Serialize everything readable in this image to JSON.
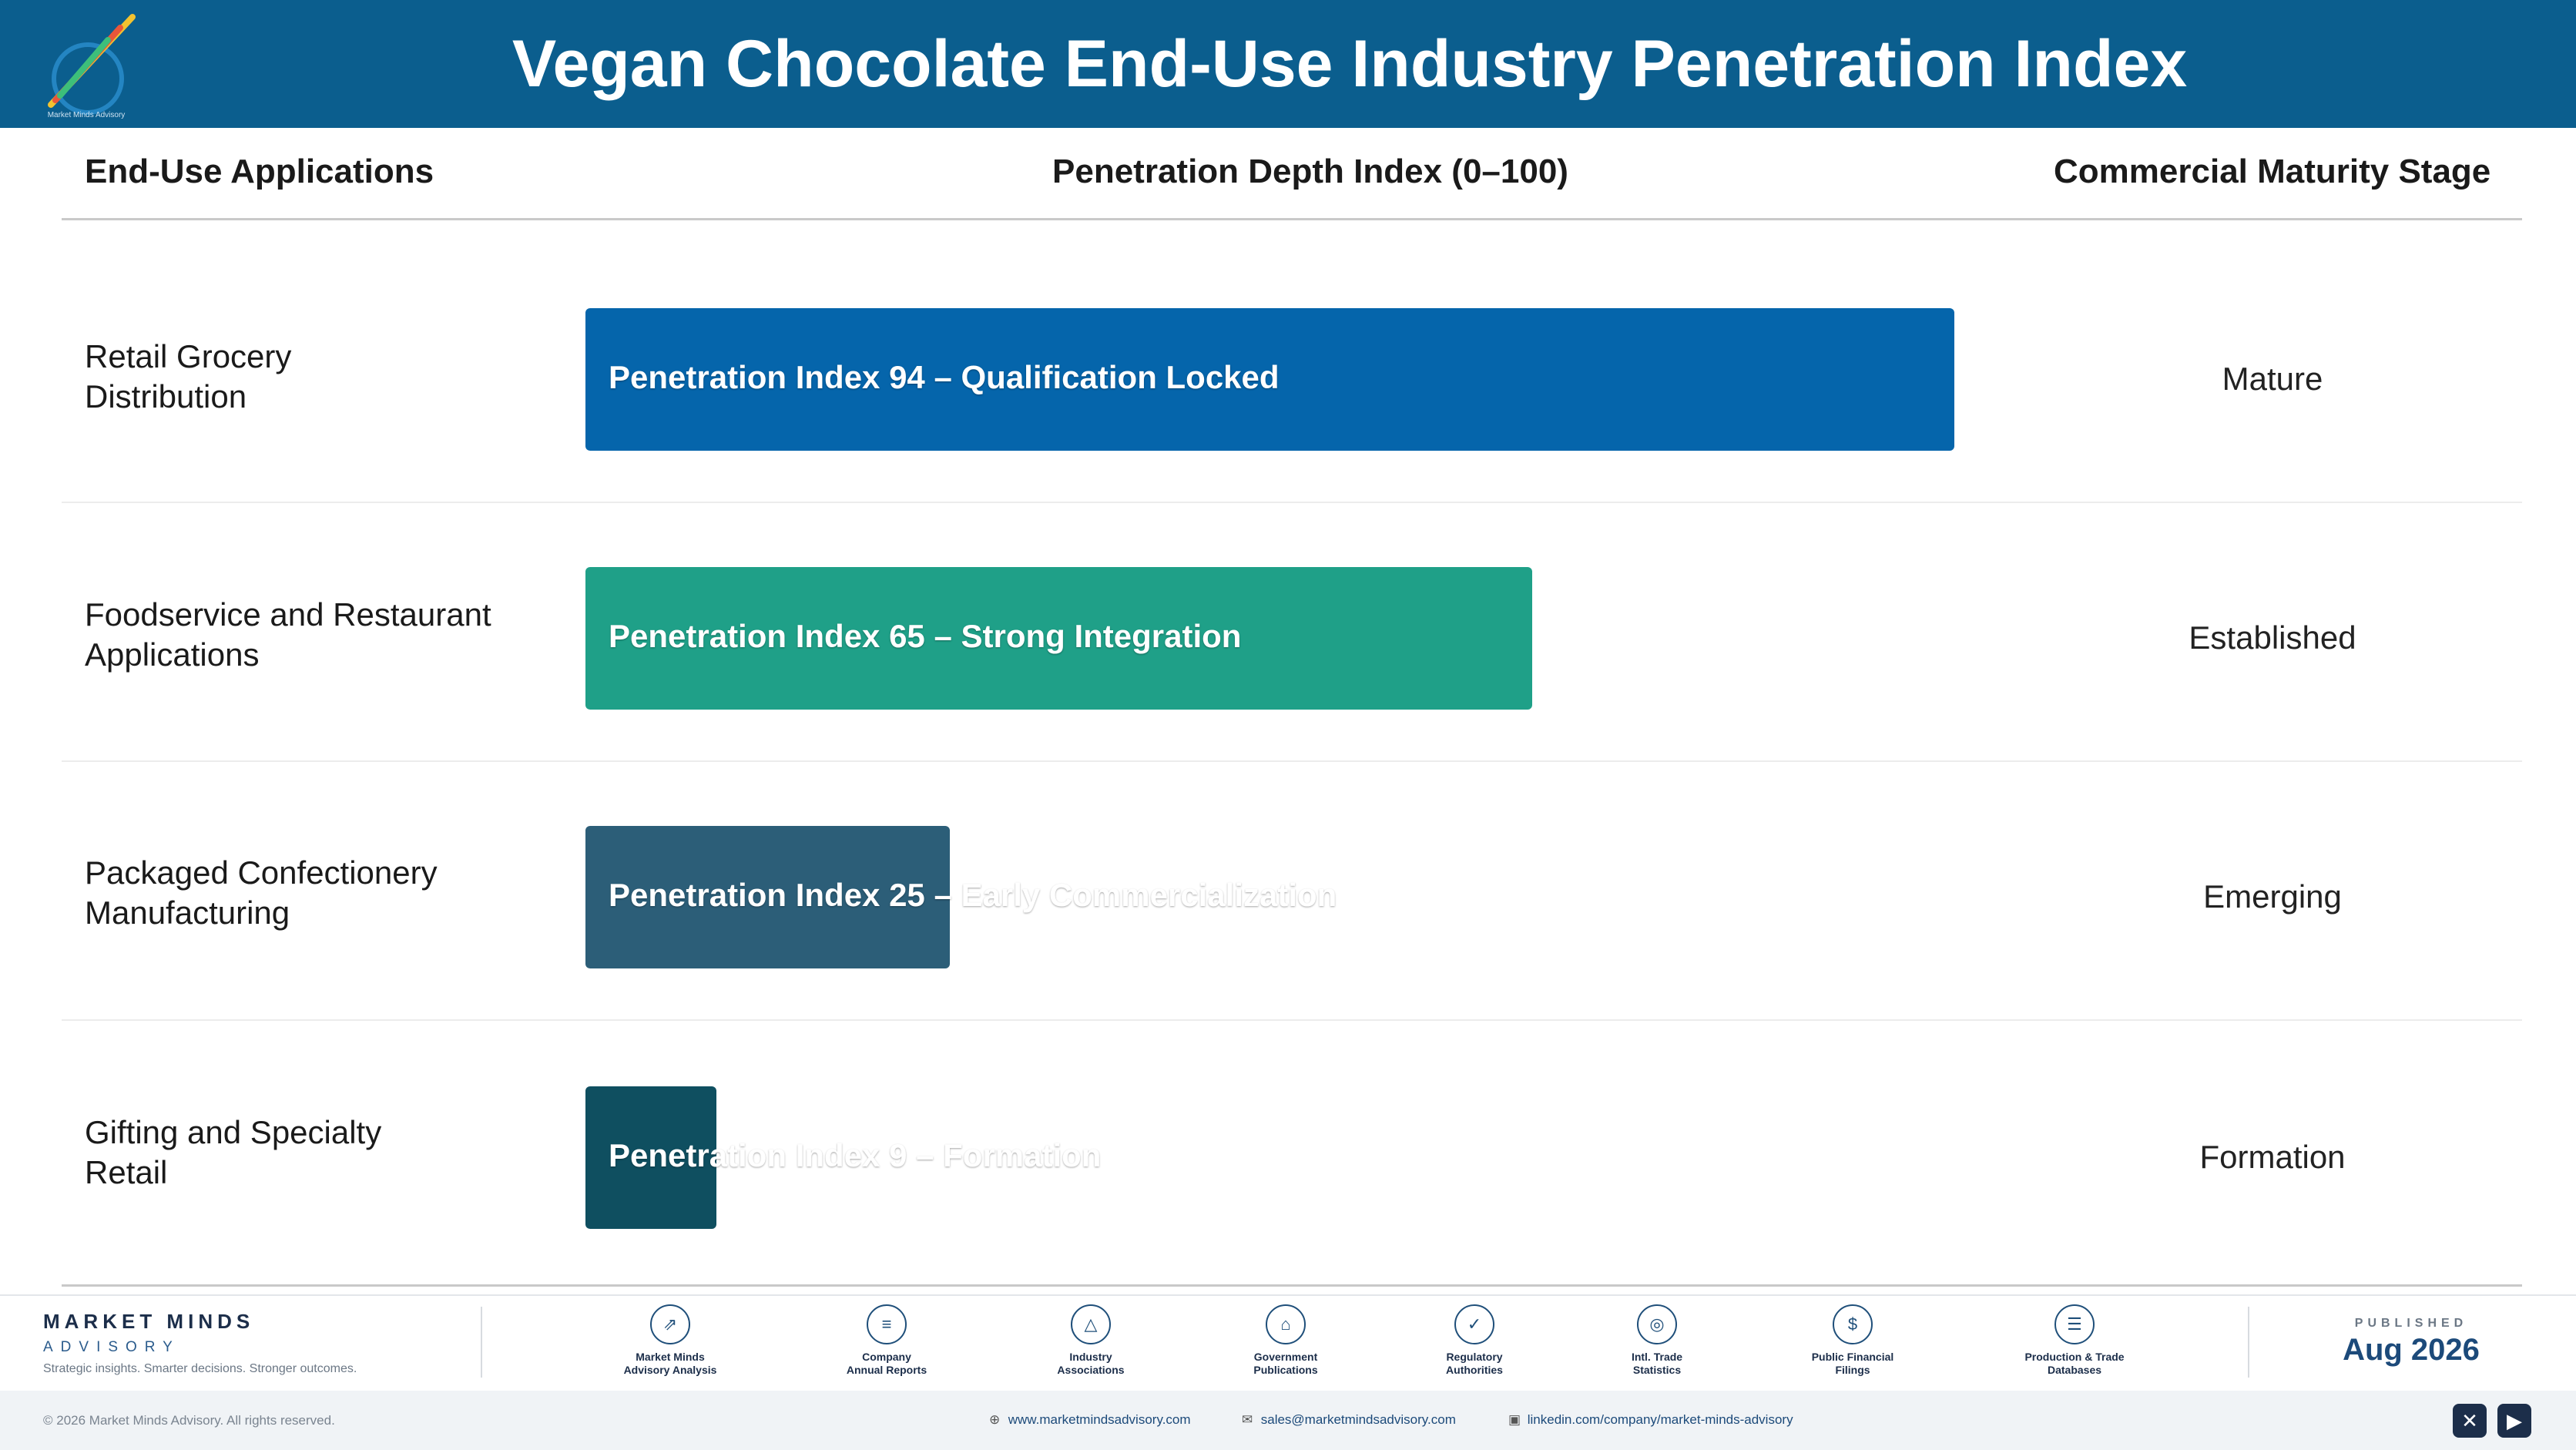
{
  "header": {
    "title": "Vegan Chocolate End-Use Industry Penetration Index",
    "logo_icon": "pencil-swoosh-logo-icon",
    "logo_caption": "Market Minds Advisory"
  },
  "columns": {
    "applications": "End-Use Applications",
    "index": "Penetration Depth Index (0–100)",
    "stage": "Commercial Maturity Stage"
  },
  "chart_data": {
    "type": "bar",
    "orientation": "horizontal",
    "xlim": [
      0,
      100
    ],
    "categories": [
      "Retail Grocery Distribution",
      "Foodservice and Restaurant Applications",
      "Packaged Confectionery Manufacturing",
      "Gifting and Specialty Retail"
    ],
    "values": [
      94,
      65,
      25,
      9
    ],
    "bar_labels": [
      "Penetration Index 94 – Qualification Locked",
      "Penetration Index 65 – Strong Integration",
      "Penetration Index 25 – Early Commercialization",
      "Penetration Index 9 – Formation"
    ],
    "stages": [
      "Mature",
      "Established",
      "Emerging",
      "Formation"
    ],
    "colors": [
      "#0565ab",
      "#1fa088",
      "#2c5e78",
      "#0f4f60"
    ]
  },
  "rows": [
    {
      "label_line1": "Retail Grocery",
      "label_line2": "Distribution"
    },
    {
      "label_line1": "Foodservice and Restaurant",
      "label_line2": "Applications"
    },
    {
      "label_line1": "Packaged Confectionery",
      "label_line2": "Manufacturing"
    },
    {
      "label_line1": "Gifting and Specialty",
      "label_line2": "Retail"
    }
  ],
  "footer": {
    "brand_name": "MARKET MINDS",
    "brand_sub": "ADVISORY",
    "tagline": "Strategic insights. Smarter decisions. Stronger outcomes.",
    "sources": [
      {
        "icon": "trend-chart-icon",
        "label": "Market Minds\nAdvisory Analysis"
      },
      {
        "icon": "document-icon",
        "label": "Company\nAnnual Reports"
      },
      {
        "icon": "network-icon",
        "label": "Industry\nAssociations"
      },
      {
        "icon": "government-building-icon",
        "label": "Government\nPublications"
      },
      {
        "icon": "shield-check-icon",
        "label": "Regulatory\nAuthorities"
      },
      {
        "icon": "globe-icon",
        "label": "Intl. Trade\nStatistics"
      },
      {
        "icon": "dollar-coin-icon",
        "label": "Public Financial\nFilings"
      },
      {
        "icon": "database-icon",
        "label": "Production & Trade\nDatabases"
      }
    ],
    "published_label": "PUBLISHED",
    "published_date": "Aug 2026",
    "copyright": "© 2026 Market Minds Advisory. All rights reserved.",
    "website": "www.marketmindsadvisory.com",
    "email": "sales@marketmindsadvisory.com",
    "linkedin": "linkedin.com/company/market-minds-advisory"
  }
}
